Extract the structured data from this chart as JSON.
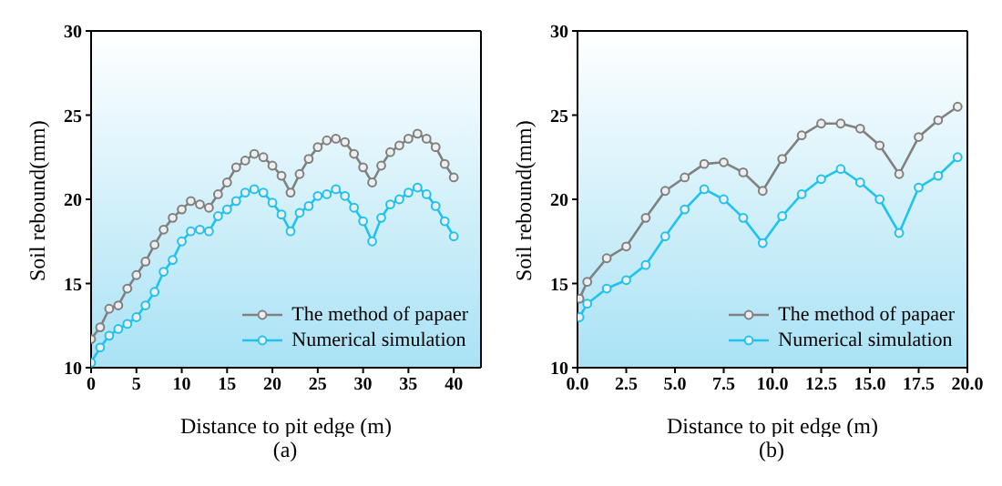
{
  "chart_data": [
    {
      "type": "line",
      "xlabel": "Distance to pit edge (m)",
      "ylabel": "Soil rebound(mm)",
      "annotations": [
        "(a)"
      ],
      "x": [
        0,
        1,
        2,
        3,
        4,
        5,
        6,
        7,
        8,
        9,
        10,
        11,
        12,
        13,
        14,
        15,
        16,
        17,
        18,
        19,
        20,
        21,
        22,
        23,
        24,
        25,
        26,
        27,
        28,
        29,
        30,
        31,
        32,
        33,
        34,
        35,
        36,
        37,
        38,
        39,
        40
      ],
      "series": [
        {
          "name": "The method of papaer",
          "color": "#808080",
          "values": [
            11.7,
            12.4,
            13.5,
            13.7,
            14.7,
            15.5,
            16.3,
            17.3,
            18.2,
            18.9,
            19.4,
            19.9,
            19.7,
            19.5,
            20.3,
            21.0,
            21.9,
            22.3,
            22.7,
            22.5,
            22.0,
            21.4,
            20.4,
            21.5,
            22.4,
            23.1,
            23.5,
            23.6,
            23.4,
            22.7,
            21.9,
            21.0,
            22.0,
            22.8,
            23.2,
            23.6,
            23.9,
            23.6,
            23.1,
            22.1,
            21.3
          ]
        },
        {
          "name": "Numerical simulation",
          "color": "#1ec3f0",
          "values": [
            10.3,
            11.2,
            11.9,
            12.3,
            12.6,
            13.0,
            13.7,
            14.5,
            15.7,
            16.4,
            17.5,
            18.1,
            18.2,
            18.1,
            19.0,
            19.4,
            19.9,
            20.4,
            20.6,
            20.4,
            19.8,
            19.1,
            18.1,
            19.2,
            19.6,
            20.2,
            20.3,
            20.6,
            20.2,
            19.5,
            18.7,
            17.5,
            18.9,
            19.7,
            20.0,
            20.4,
            20.7,
            20.3,
            19.6,
            18.7,
            17.8
          ]
        }
      ],
      "xlim": [
        0,
        43
      ],
      "xticks": [
        0,
        5,
        10,
        15,
        20,
        25,
        30,
        35,
        40
      ],
      "ylim": [
        10,
        30
      ],
      "yticks": [
        10,
        15,
        20,
        25,
        30
      ],
      "legend": "bottom right",
      "marker": "circle",
      "grid": false
    },
    {
      "type": "line",
      "xlabel": "Distance to pit edge (m)",
      "ylabel": "Soil rebound(mm)",
      "annotations": [
        "(b)"
      ],
      "x": [
        0.1,
        0.5,
        1.5,
        2.5,
        3.5,
        4.5,
        5.5,
        6.5,
        7.5,
        8.5,
        9.5,
        10.5,
        11.5,
        12.5,
        13.5,
        14.5,
        15.5,
        16.5,
        17.5,
        18.5,
        19.5
      ],
      "series": [
        {
          "name": "The method of papaer",
          "color": "#808080",
          "values": [
            14.1,
            15.1,
            16.5,
            17.2,
            18.9,
            20.5,
            21.3,
            22.1,
            22.2,
            21.6,
            20.5,
            22.4,
            23.8,
            24.5,
            24.5,
            24.2,
            23.2,
            21.5,
            23.7,
            24.7,
            25.5
          ]
        },
        {
          "name": "Numerical simulation",
          "color": "#1ec3f0",
          "values": [
            13.0,
            13.8,
            14.7,
            15.2,
            16.1,
            17.8,
            19.4,
            20.6,
            20.0,
            18.9,
            17.4,
            19.0,
            20.3,
            21.2,
            21.8,
            21.0,
            20.0,
            18.0,
            20.7,
            21.4,
            22.5
          ]
        }
      ],
      "xlim": [
        0,
        20
      ],
      "xticks": [
        {
          "value": 0,
          "label": "0.0"
        },
        {
          "value": 2.5,
          "label": "2.5"
        },
        {
          "value": 5,
          "label": "5.0"
        },
        {
          "value": 7.5,
          "label": "7.5"
        },
        {
          "value": 10,
          "label": "10.0"
        },
        {
          "value": 12.5,
          "label": "12.5"
        },
        {
          "value": 15,
          "label": "15.0"
        },
        {
          "value": 17.5,
          "label": "17.5"
        },
        {
          "value": 20,
          "label": "20.0"
        }
      ],
      "ylim": [
        10,
        30
      ],
      "yticks": [
        10,
        15,
        20,
        25,
        30
      ],
      "legend": "bottom right",
      "marker": "circle",
      "grid": false
    }
  ]
}
